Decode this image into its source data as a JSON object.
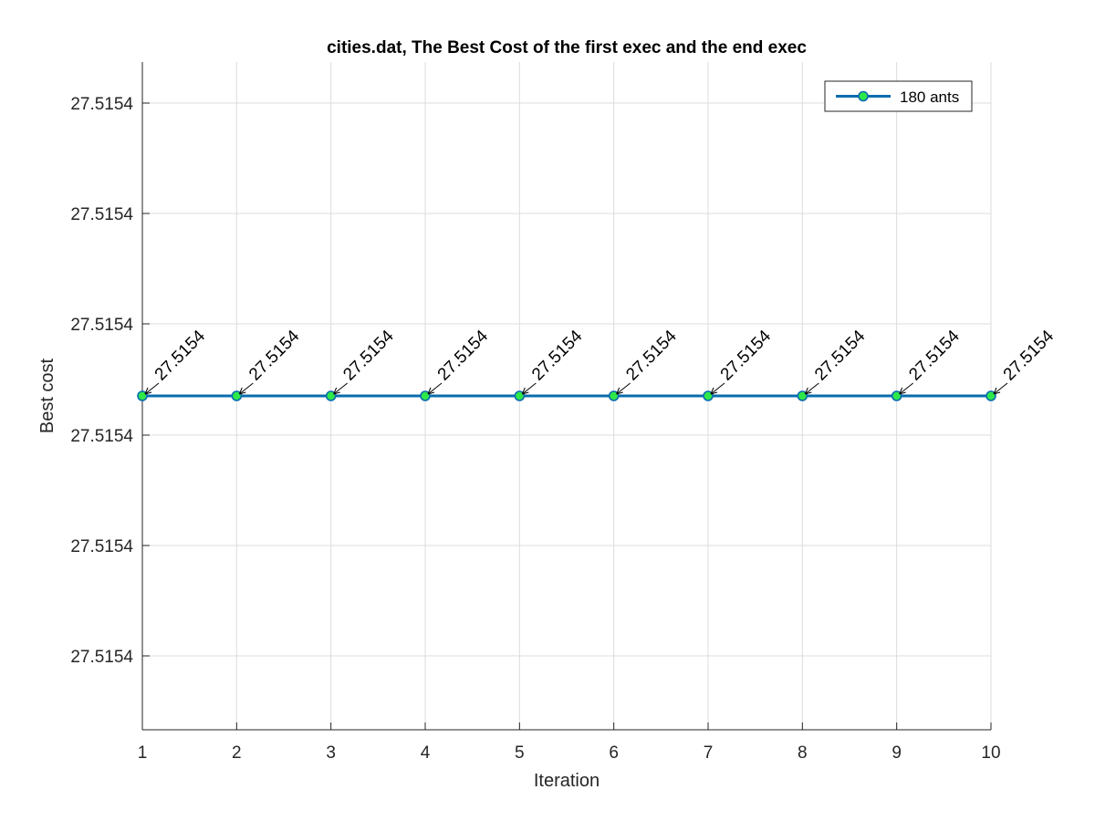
{
  "chart_data": {
    "type": "line",
    "title": "cities.dat, The Best Cost  of the first exec and the end exec",
    "xlabel": "Iteration",
    "ylabel": "Best cost",
    "xlim": [
      1,
      10
    ],
    "x_ticks": [
      1,
      2,
      3,
      4,
      5,
      6,
      7,
      8,
      9,
      10
    ],
    "y_tick_labels": [
      "27.5154",
      "27.5154",
      "27.5154",
      "27.5154",
      "27.5154",
      "27.5154"
    ],
    "grid": true,
    "legend_position": "top-right",
    "series": [
      {
        "name": "180 ants",
        "x": [
          1,
          2,
          3,
          4,
          5,
          6,
          7,
          8,
          9,
          10
        ],
        "values": [
          27.5154,
          27.5154,
          27.5154,
          27.5154,
          27.5154,
          27.5154,
          27.5154,
          27.5154,
          27.5154,
          27.5154
        ],
        "line_color": "#0a6cae",
        "marker": "circle",
        "marker_face_color": "#2ee84a",
        "marker_edge_color": "#0a6cae"
      }
    ],
    "annotations": [
      {
        "x": 1,
        "label": "27.5154"
      },
      {
        "x": 2,
        "label": "27.5154"
      },
      {
        "x": 3,
        "label": "27.5154"
      },
      {
        "x": 4,
        "label": "27.5154"
      },
      {
        "x": 5,
        "label": "27.5154"
      },
      {
        "x": 6,
        "label": "27.5154"
      },
      {
        "x": 7,
        "label": "27.5154"
      },
      {
        "x": 8,
        "label": "27.5154"
      },
      {
        "x": 9,
        "label": "27.5154"
      },
      {
        "x": 10,
        "label": "27.5154"
      }
    ]
  }
}
